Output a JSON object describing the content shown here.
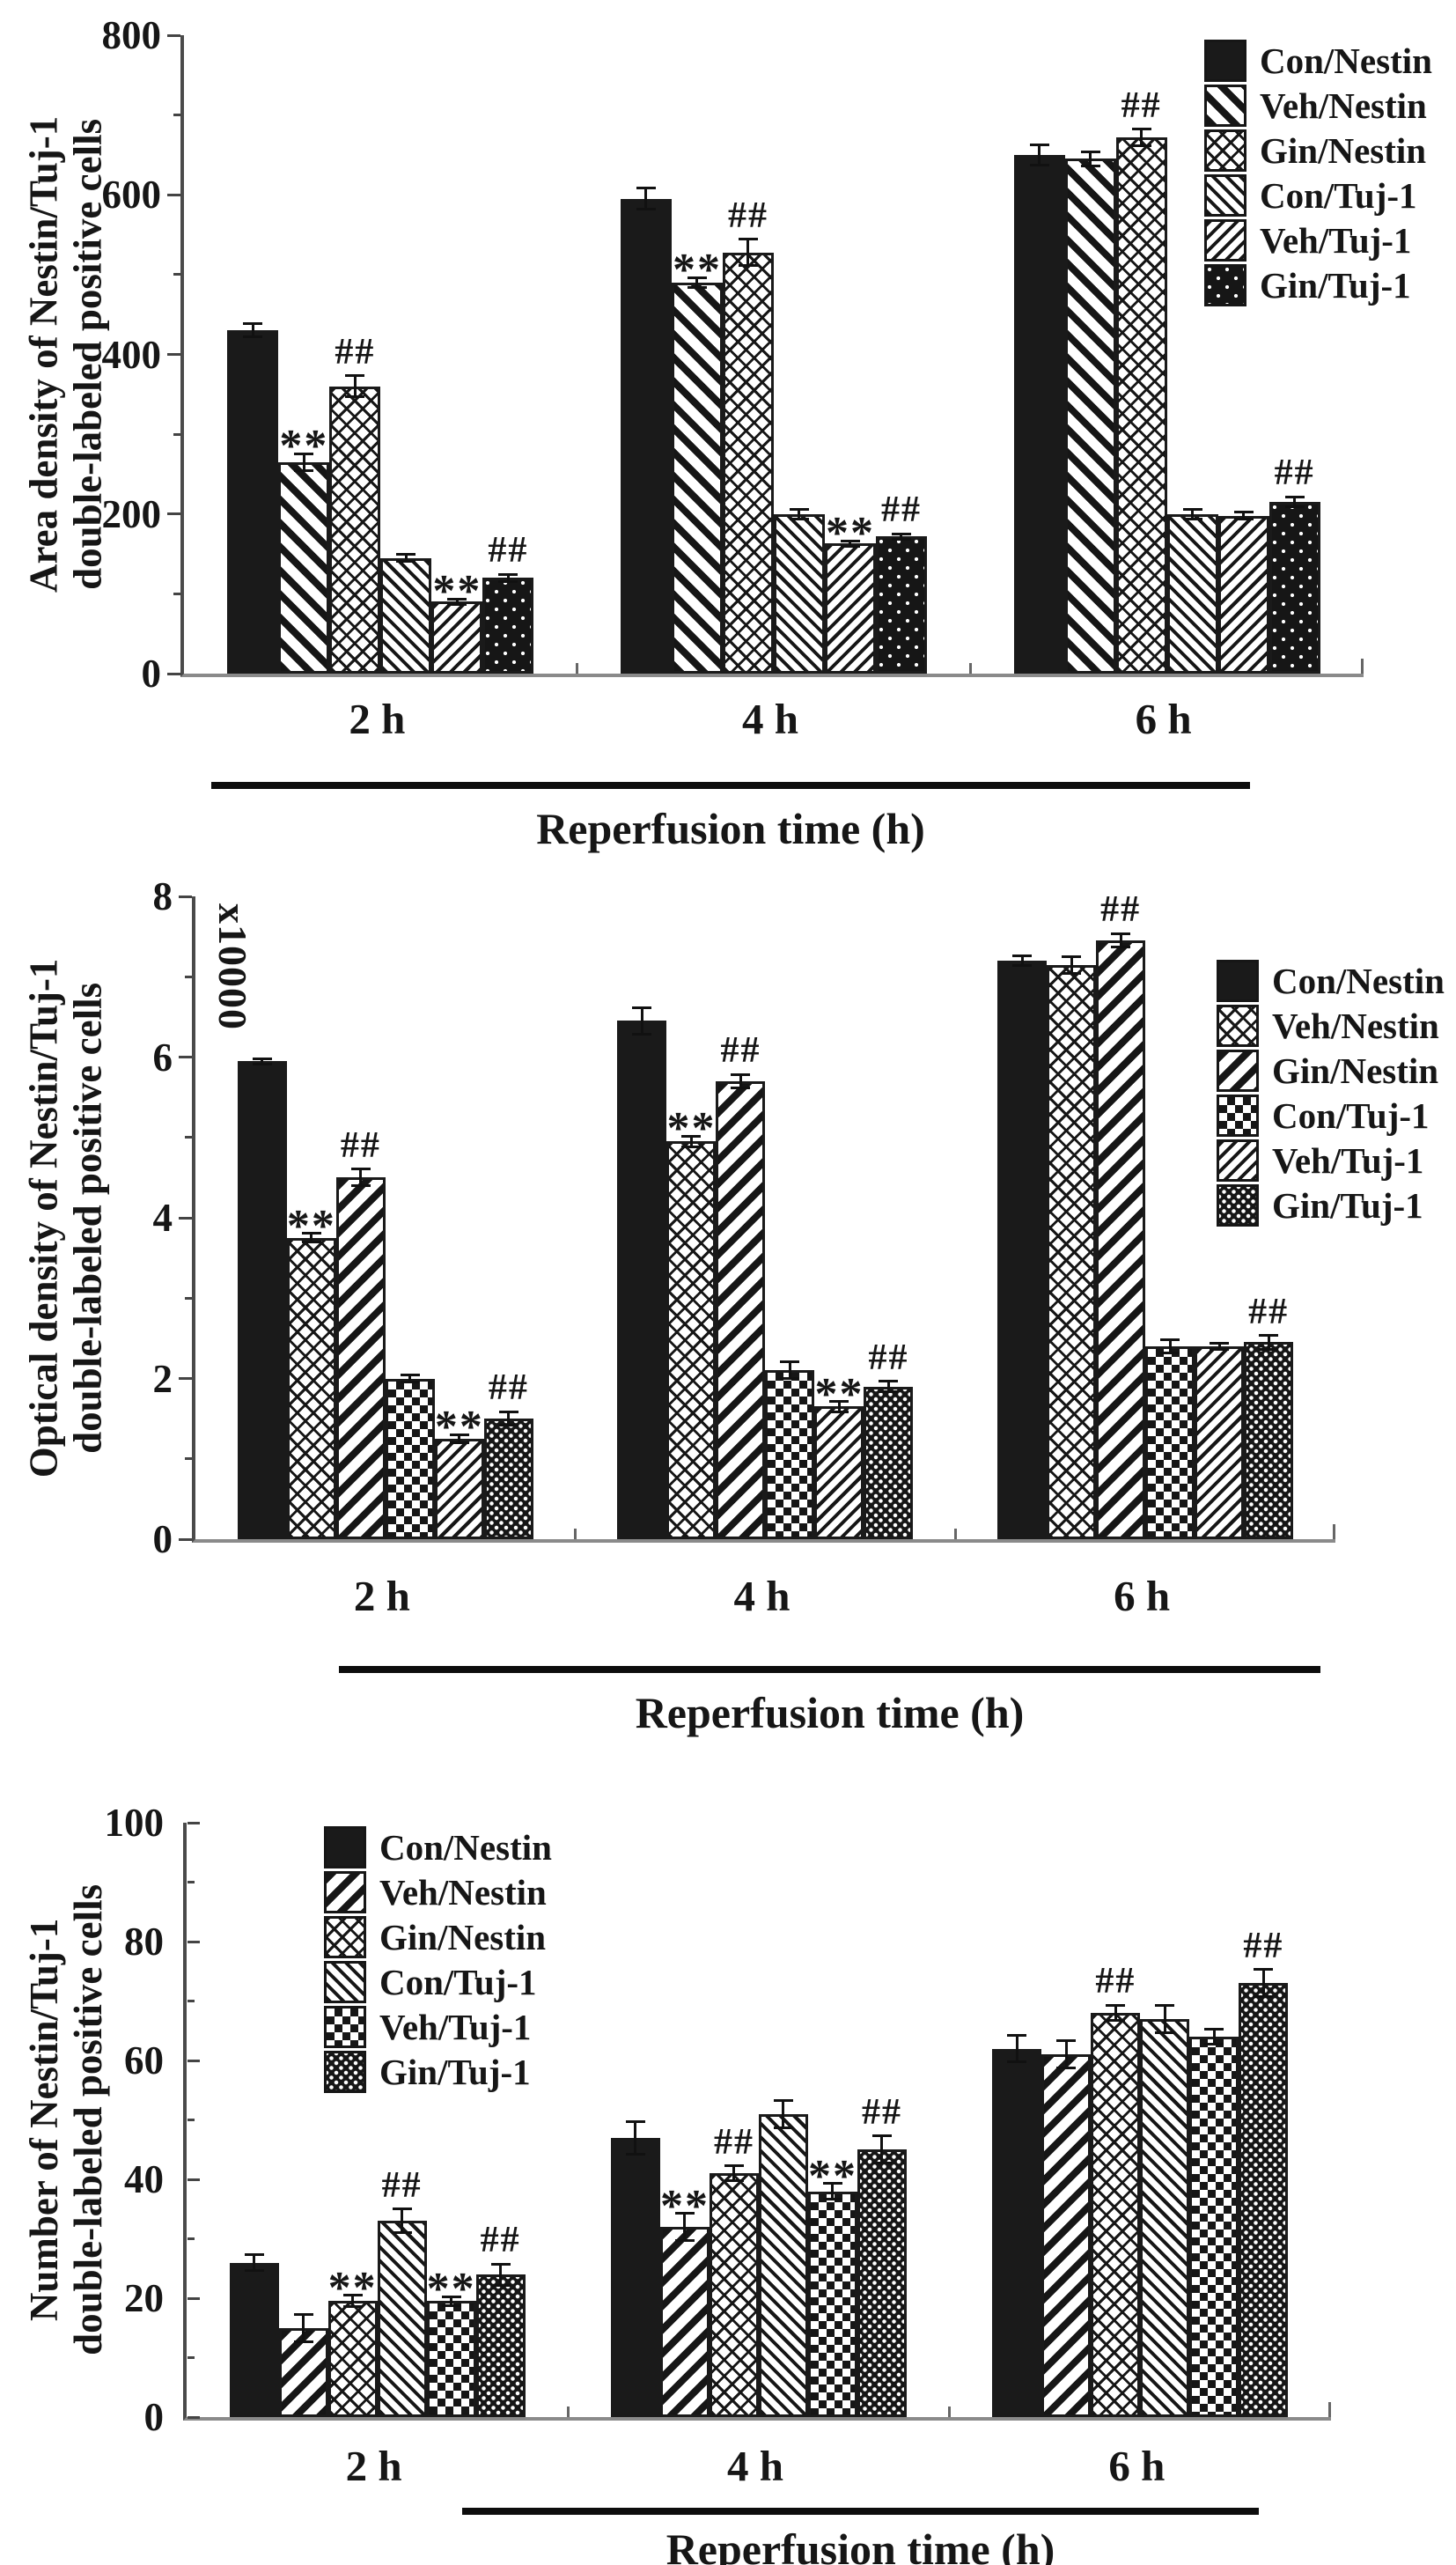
{
  "page": {
    "background": "#ffffff",
    "ink_color": "#161616"
  },
  "figure": {
    "x_axis_title": "Reperfusion time (h)",
    "significance_markers": {
      "asterisks": "**",
      "hashes": "##"
    }
  },
  "chart_data": [
    {
      "type": "bar",
      "ylabel_line1": "Area density of Nestin/Tuj-1",
      "ylabel_line2": "double-labeled positive cells",
      "xlabel": "Reperfusion time (h)",
      "scale_note": "",
      "ylim": [
        0,
        800
      ],
      "yticks": [
        0,
        200,
        400,
        600,
        800
      ],
      "yminor": [
        100,
        300,
        500,
        700
      ],
      "categories": [
        "2 h",
        "4 h",
        "6 h"
      ],
      "legend_position": "outside-top-right",
      "grid": false,
      "series": [
        {
          "name": "Con/Nestin",
          "pattern": "solid",
          "values": [
            430,
            595,
            650
          ],
          "errors": [
            10,
            15,
            14
          ]
        },
        {
          "name": "Veh/Nestin",
          "pattern": "stripe-back-thick",
          "values": [
            265,
            490,
            645
          ],
          "errors": [
            12,
            8,
            10
          ]
        },
        {
          "name": "Gin/Nestin",
          "pattern": "crosshatch",
          "values": [
            360,
            528,
            672
          ],
          "errors": [
            15,
            18,
            12
          ]
        },
        {
          "name": "Con/Tuj-1",
          "pattern": "stripe-back-thin",
          "values": [
            145,
            200,
            200
          ],
          "errors": [
            6,
            8,
            8
          ]
        },
        {
          "name": "Veh/Tuj-1",
          "pattern": "stripe-fwd-thin",
          "values": [
            90,
            163,
            198
          ],
          "errors": [
            5,
            5,
            6
          ]
        },
        {
          "name": "Gin/Tuj-1",
          "pattern": "speckle",
          "values": [
            120,
            172,
            215
          ],
          "errors": [
            6,
            5,
            8
          ]
        }
      ],
      "annotations": [
        {
          "group": 0,
          "series": 1,
          "text": "**"
        },
        {
          "group": 0,
          "series": 2,
          "text": "##"
        },
        {
          "group": 0,
          "series": 4,
          "text": "**"
        },
        {
          "group": 0,
          "series": 5,
          "text": "##"
        },
        {
          "group": 1,
          "series": 1,
          "text": "**"
        },
        {
          "group": 1,
          "series": 2,
          "text": "##"
        },
        {
          "group": 1,
          "series": 4,
          "text": "**"
        },
        {
          "group": 1,
          "series": 5,
          "text": "##"
        },
        {
          "group": 2,
          "series": 2,
          "text": "##"
        },
        {
          "group": 2,
          "series": 5,
          "text": "##"
        }
      ]
    },
    {
      "type": "bar",
      "ylabel_line1": "Optical density of Nestin/Tuj-1",
      "ylabel_line2": "double-labeled positive cells",
      "xlabel": "Reperfusion time (h)",
      "scale_note": "x10000",
      "ylim": [
        0,
        8
      ],
      "yticks": [
        0,
        2,
        4,
        6,
        8
      ],
      "yminor": [
        1,
        3,
        5,
        7
      ],
      "categories": [
        "2 h",
        "4 h",
        "6 h"
      ],
      "legend_position": "outside-right",
      "grid": false,
      "series": [
        {
          "name": "Con/Nestin",
          "pattern": "solid",
          "values": [
            5.95,
            6.45,
            7.2
          ],
          "errors": [
            0.05,
            0.18,
            0.08
          ]
        },
        {
          "name": "Veh/Nestin",
          "pattern": "crosshatch",
          "values": [
            3.75,
            4.95,
            7.15
          ],
          "errors": [
            0.07,
            0.08,
            0.12
          ]
        },
        {
          "name": "Gin/Nestin",
          "pattern": "stripe-fwd-thick",
          "values": [
            4.5,
            5.7,
            7.45
          ],
          "errors": [
            0.12,
            0.1,
            0.1
          ]
        },
        {
          "name": "Con/Tuj-1",
          "pattern": "checker",
          "values": [
            2.0,
            2.1,
            2.4
          ],
          "errors": [
            0.06,
            0.12,
            0.1
          ]
        },
        {
          "name": "Veh/Tuj-1",
          "pattern": "stripe-fwd-thin",
          "values": [
            1.25,
            1.65,
            2.4
          ],
          "errors": [
            0.07,
            0.08,
            0.06
          ]
        },
        {
          "name": "Gin/Tuj-1",
          "pattern": "dense-check",
          "values": [
            1.5,
            1.9,
            2.45
          ],
          "errors": [
            0.1,
            0.08,
            0.1
          ]
        }
      ],
      "annotations": [
        {
          "group": 0,
          "series": 1,
          "text": "**"
        },
        {
          "group": 0,
          "series": 2,
          "text": "##"
        },
        {
          "group": 0,
          "series": 4,
          "text": "**"
        },
        {
          "group": 0,
          "series": 5,
          "text": "##"
        },
        {
          "group": 1,
          "series": 1,
          "text": "**"
        },
        {
          "group": 1,
          "series": 2,
          "text": "##"
        },
        {
          "group": 1,
          "series": 4,
          "text": "**"
        },
        {
          "group": 1,
          "series": 5,
          "text": "##"
        },
        {
          "group": 2,
          "series": 2,
          "text": "##"
        },
        {
          "group": 2,
          "series": 5,
          "text": "##"
        }
      ]
    },
    {
      "type": "bar",
      "ylabel_line1": "Number of Nestin/Tuj-1",
      "ylabel_line2": "double-labeled positive cells",
      "xlabel": "Reperfusion time (h)",
      "scale_note": "",
      "ylim": [
        0,
        100
      ],
      "yticks": [
        0,
        20,
        40,
        60,
        80,
        100
      ],
      "yminor": [
        10,
        30,
        50,
        70,
        90
      ],
      "categories": [
        "2 h",
        "4 h",
        "6 h"
      ],
      "legend_position": "inside-top-left",
      "grid": false,
      "series": [
        {
          "name": "Con/Nestin",
          "pattern": "solid",
          "values": [
            26,
            47,
            62
          ],
          "errors": [
            1.5,
            3,
            2.5
          ]
        },
        {
          "name": "Veh/Nestin",
          "pattern": "stripe-fwd-thick",
          "values": [
            15,
            32,
            61
          ],
          "errors": [
            2.5,
            2.5,
            2.5
          ]
        },
        {
          "name": "Gin/Nestin",
          "pattern": "crosshatch",
          "values": [
            19.5,
            41,
            68
          ],
          "errors": [
            1.2,
            1.5,
            1.5
          ]
        },
        {
          "name": "Con/Tuj-1",
          "pattern": "stripe-back-thin",
          "values": [
            33,
            51,
            67
          ],
          "errors": [
            2.2,
            2.5,
            2.5
          ]
        },
        {
          "name": "Veh/Tuj-1",
          "pattern": "checker",
          "values": [
            19.5,
            38,
            64
          ],
          "errors": [
            1,
            1.5,
            1.5
          ]
        },
        {
          "name": "Gin/Tuj-1",
          "pattern": "dense-check",
          "values": [
            24,
            45,
            73
          ],
          "errors": [
            2,
            2.5,
            2.5
          ]
        }
      ],
      "annotations": [
        {
          "group": 0,
          "series": 2,
          "text": "**"
        },
        {
          "group": 0,
          "series": 3,
          "text": "##"
        },
        {
          "group": 0,
          "series": 4,
          "text": "**"
        },
        {
          "group": 0,
          "series": 5,
          "text": "##"
        },
        {
          "group": 1,
          "series": 1,
          "text": "**"
        },
        {
          "group": 1,
          "series": 2,
          "text": "##"
        },
        {
          "group": 1,
          "series": 4,
          "text": "**"
        },
        {
          "group": 1,
          "series": 5,
          "text": "##"
        },
        {
          "group": 2,
          "series": 2,
          "text": "##"
        },
        {
          "group": 2,
          "series": 5,
          "text": "##"
        }
      ]
    }
  ]
}
